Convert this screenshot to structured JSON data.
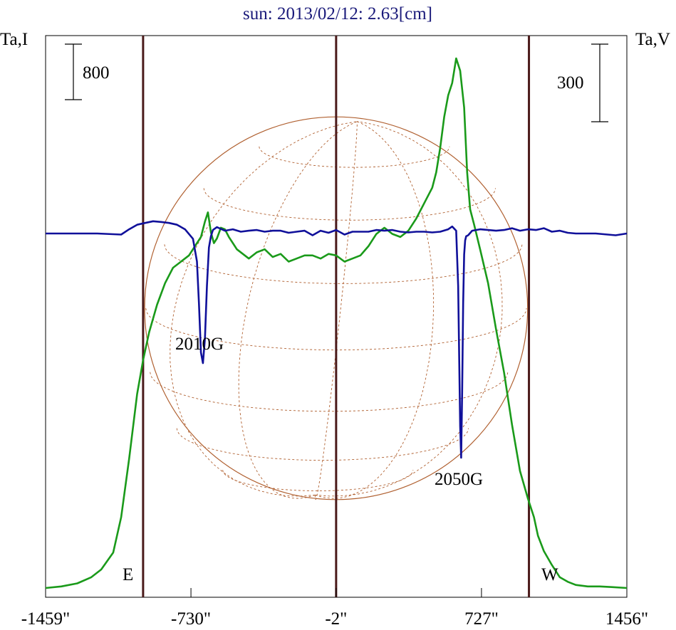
{
  "chart_data": {
    "type": "line",
    "title": "sun: 2013/02/12: 2.63[cm]",
    "left_axis_label": "Ta,I",
    "right_axis_label": "Ta,V",
    "left_scale_bar": "800",
    "right_scale_bar": "300",
    "x_tick_labels": [
      "-1459\"",
      "-730\"",
      "-2\"",
      "727\"",
      "1456\""
    ],
    "x_ticks": [
      -730,
      -2,
      727
    ],
    "xlim": [
      -1459,
      1456
    ],
    "limb_lines": [
      -970,
      -2,
      965
    ],
    "limb_labels": {
      "east": "E",
      "west": "W"
    },
    "annotations": [
      {
        "text": "2010G",
        "x": -650
      },
      {
        "text": "2050G",
        "x": 640
      }
    ],
    "grid": false,
    "colors": {
      "intensity": "#1a9a1a",
      "polarization": "#10109a",
      "limb_lines": "#4a1a1a",
      "disk": "#b06030",
      "title": "#1a1a7a"
    },
    "series": [
      {
        "name": "Ta,I",
        "x": [
          -1459,
          -1380,
          -1300,
          -1230,
          -1180,
          -1120,
          -1080,
          -1040,
          -1000,
          -970,
          -940,
          -900,
          -860,
          -820,
          -780,
          -740,
          -700,
          -680,
          -660,
          -645,
          -630,
          -615,
          -600,
          -580,
          -560,
          -540,
          -520,
          -500,
          -470,
          -440,
          -400,
          -360,
          -320,
          -280,
          -240,
          -200,
          -160,
          -120,
          -80,
          -40,
          -2,
          40,
          80,
          120,
          160,
          200,
          240,
          280,
          320,
          360,
          400,
          440,
          480,
          500,
          520,
          540,
          560,
          580,
          600,
          620,
          640,
          655,
          670,
          690,
          720,
          760,
          800,
          840,
          880,
          920,
          960,
          990,
          1010,
          1040,
          1080,
          1120,
          1160,
          1200,
          1260,
          1320,
          1380,
          1456
        ],
        "y": [
          0,
          5,
          15,
          35,
          60,
          115,
          230,
          420,
          630,
          740,
          830,
          920,
          990,
          1040,
          1060,
          1080,
          1120,
          1140,
          1190,
          1220,
          1155,
          1120,
          1135,
          1170,
          1165,
          1140,
          1120,
          1100,
          1085,
          1070,
          1090,
          1100,
          1075,
          1085,
          1060,
          1070,
          1080,
          1080,
          1070,
          1085,
          1080,
          1060,
          1070,
          1080,
          1110,
          1150,
          1170,
          1150,
          1140,
          1160,
          1200,
          1250,
          1300,
          1350,
          1430,
          1530,
          1600,
          1640,
          1720,
          1680,
          1560,
          1350,
          1230,
          1180,
          1100,
          990,
          840,
          700,
          530,
          380,
          290,
          230,
          170,
          120,
          75,
          35,
          20,
          10,
          5,
          5,
          3,
          0
        ]
      },
      {
        "name": "Ta,V",
        "x": [
          -1459,
          -1200,
          -1080,
          -1040,
          -1000,
          -960,
          -920,
          -880,
          -840,
          -800,
          -760,
          -720,
          -700,
          -690,
          -680,
          -670,
          -660,
          -650,
          -640,
          -630,
          -620,
          -600,
          -560,
          -520,
          -480,
          -440,
          -400,
          -360,
          -320,
          -280,
          -240,
          -200,
          -160,
          -120,
          -80,
          -40,
          -2,
          40,
          80,
          120,
          160,
          200,
          240,
          280,
          320,
          360,
          400,
          440,
          480,
          520,
          560,
          580,
          600,
          610,
          620,
          625,
          630,
          635,
          640,
          645,
          650,
          660,
          680,
          720,
          760,
          800,
          840,
          880,
          920,
          960,
          1000,
          1040,
          1080,
          1120,
          1160,
          1200,
          1300,
          1400,
          1456
        ],
        "y": [
          0,
          0,
          -3,
          12,
          25,
          30,
          35,
          33,
          30,
          25,
          12,
          -15,
          -80,
          -200,
          -340,
          -370,
          -300,
          -150,
          -40,
          -8,
          10,
          18,
          8,
          12,
          5,
          8,
          10,
          5,
          8,
          8,
          2,
          5,
          8,
          -5,
          8,
          2,
          10,
          -3,
          5,
          5,
          5,
          10,
          8,
          10,
          5,
          3,
          5,
          5,
          3,
          5,
          12,
          20,
          8,
          -150,
          -550,
          -640,
          -450,
          -200,
          -60,
          -20,
          -8,
          -5,
          8,
          12,
          10,
          8,
          10,
          15,
          8,
          12,
          10,
          15,
          5,
          8,
          2,
          0,
          0,
          -5,
          0
        ]
      }
    ]
  }
}
